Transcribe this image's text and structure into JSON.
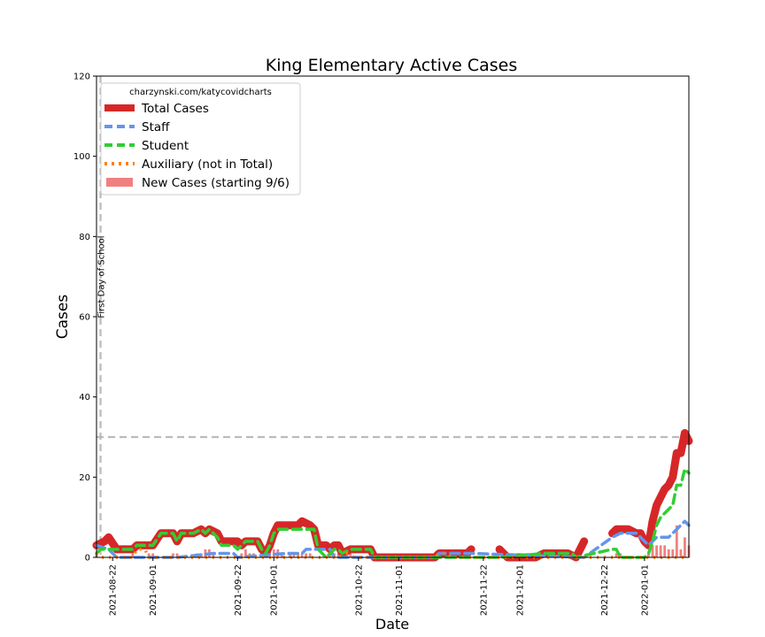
{
  "chart_data": {
    "type": "line",
    "title": "King Elementary Active Cases",
    "xlabel": "Date",
    "ylabel": "Cases",
    "ylim": [
      0,
      120
    ],
    "xlim": [
      "2021-08-18",
      "2022-01-12"
    ],
    "yticks": [
      0,
      20,
      40,
      60,
      80,
      100,
      120
    ],
    "xticks": [
      "2021-08-22",
      "2021-09-01",
      "2021-09-22",
      "2021-10-01",
      "2021-10-22",
      "2021-11-01",
      "2021-11-22",
      "2021-12-01",
      "2021-12-22",
      "2022-01-01"
    ],
    "grid": false,
    "legend_position": "top-left",
    "legend_title": "charzynski.com/katycovidcharts",
    "reference_lines": [
      {
        "orientation": "vertical",
        "x": "2021-08-19",
        "label": "First Day of School"
      },
      {
        "orientation": "horizontal",
        "y": 30,
        "label": ""
      }
    ],
    "series": [
      {
        "name": "Total Cases",
        "color": "#d62728",
        "style": "solid",
        "points": [
          [
            "2021-08-18",
            3
          ],
          [
            "2021-08-20",
            4
          ],
          [
            "2021-08-21",
            5
          ],
          [
            "2021-08-23",
            2
          ],
          [
            "2021-08-27",
            2
          ],
          [
            "2021-08-28",
            3
          ],
          [
            "2021-09-01",
            3
          ],
          [
            "2021-09-03",
            6
          ],
          [
            "2021-09-06",
            6
          ],
          [
            "2021-09-07",
            4
          ],
          [
            "2021-09-08",
            6
          ],
          [
            "2021-09-11",
            6
          ],
          [
            "2021-09-13",
            7
          ],
          [
            "2021-09-14",
            6
          ],
          [
            "2021-09-15",
            7
          ],
          [
            "2021-09-17",
            6
          ],
          [
            "2021-09-18",
            4
          ],
          [
            "2021-09-20",
            4
          ],
          [
            "2021-09-22",
            4
          ],
          [
            "2021-09-23",
            3
          ],
          [
            "2021-09-24",
            4
          ],
          [
            "2021-09-27",
            4
          ],
          [
            "2021-09-28",
            2
          ],
          [
            "2021-09-29",
            1
          ],
          [
            "2021-09-30",
            3
          ],
          [
            "2021-10-01",
            6
          ],
          [
            "2021-10-02",
            8
          ],
          [
            "2021-10-05",
            8
          ],
          [
            "2021-10-06",
            8
          ],
          [
            "2021-10-07",
            8
          ],
          [
            "2021-10-08",
            9
          ],
          [
            "2021-10-10",
            8
          ],
          [
            "2021-10-11",
            7
          ],
          [
            "2021-10-12",
            3
          ],
          [
            "2021-10-14",
            3
          ],
          [
            "2021-10-15",
            2
          ],
          [
            "2021-10-16",
            3
          ],
          [
            "2021-10-17",
            3
          ],
          [
            "2021-10-18",
            1
          ],
          [
            "2021-10-20",
            2
          ],
          [
            "2021-10-25",
            2
          ],
          [
            "2021-10-26",
            0
          ],
          [
            "2021-11-04",
            0
          ],
          [
            "2021-11-08",
            0
          ],
          [
            "2021-11-10",
            0
          ],
          [
            "2021-11-11",
            1
          ],
          [
            "2021-11-18",
            1
          ],
          [
            "2021-11-19",
            2
          ]
        ]
      },
      {
        "name": "Total Cases",
        "color": "#d62728",
        "style": "solid",
        "points": [
          [
            "2021-11-26",
            2
          ],
          [
            "2021-11-28",
            0
          ],
          [
            "2021-12-03",
            0
          ],
          [
            "2021-12-05",
            0
          ],
          [
            "2021-12-07",
            1
          ],
          [
            "2021-12-13",
            1
          ],
          [
            "2021-12-15",
            0
          ],
          [
            "2021-12-17",
            4
          ]
        ]
      },
      {
        "name": "Total Cases",
        "color": "#d62728",
        "style": "solid",
        "points": [
          [
            "2021-12-24",
            6
          ],
          [
            "2021-12-25",
            7
          ],
          [
            "2021-12-28",
            7
          ],
          [
            "2021-12-30",
            6
          ],
          [
            "2021-12-31",
            6
          ],
          [
            "2022-01-01",
            4
          ],
          [
            "2022-01-02",
            3
          ],
          [
            "2022-01-03",
            9
          ],
          [
            "2022-01-04",
            13
          ],
          [
            "2022-01-05",
            15
          ],
          [
            "2022-01-06",
            17
          ],
          [
            "2022-01-07",
            18
          ],
          [
            "2022-01-08",
            20
          ],
          [
            "2022-01-09",
            26
          ],
          [
            "2022-01-10",
            26
          ],
          [
            "2022-01-11",
            31
          ],
          [
            "2022-01-12",
            29
          ]
        ]
      },
      {
        "name": "Staff",
        "color": "#6495ed",
        "style": "dashed",
        "points": [
          [
            "2021-08-18",
            3
          ],
          [
            "2021-08-21",
            2
          ],
          [
            "2021-08-23",
            0
          ],
          [
            "2021-08-24",
            0
          ],
          [
            "2021-09-07",
            0
          ],
          [
            "2021-09-16",
            1
          ],
          [
            "2021-09-21",
            1
          ],
          [
            "2021-09-22",
            0
          ],
          [
            "2021-10-04",
            1
          ],
          [
            "2021-10-08",
            1
          ],
          [
            "2021-10-09",
            2
          ],
          [
            "2021-10-15",
            2
          ],
          [
            "2021-10-16",
            0
          ],
          [
            "2021-10-26",
            0
          ],
          [
            "2021-11-10",
            0
          ],
          [
            "2021-11-11",
            1
          ],
          [
            "2021-11-19",
            1
          ],
          [
            "2021-12-17",
            0
          ],
          [
            "2021-12-24",
            5
          ],
          [
            "2021-12-26",
            6
          ],
          [
            "2021-12-30",
            6
          ],
          [
            "2022-01-02",
            3
          ],
          [
            "2022-01-04",
            5
          ],
          [
            "2022-01-07",
            5
          ],
          [
            "2022-01-10",
            8
          ],
          [
            "2022-01-11",
            9
          ],
          [
            "2022-01-12",
            8
          ]
        ]
      },
      {
        "name": "Student",
        "color": "#32cd32",
        "style": "dashed",
        "points": [
          [
            "2021-08-18",
            1
          ],
          [
            "2021-08-19",
            2
          ],
          [
            "2021-08-23",
            2
          ],
          [
            "2021-08-27",
            2
          ],
          [
            "2021-08-28",
            3
          ],
          [
            "2021-09-01",
            3
          ],
          [
            "2021-09-03",
            6
          ],
          [
            "2021-09-06",
            6
          ],
          [
            "2021-09-07",
            4
          ],
          [
            "2021-09-08",
            6
          ],
          [
            "2021-09-11",
            6
          ],
          [
            "2021-09-13",
            7
          ],
          [
            "2021-09-14",
            6
          ],
          [
            "2021-09-15",
            7
          ],
          [
            "2021-09-17",
            5
          ],
          [
            "2021-09-18",
            3
          ],
          [
            "2021-09-21",
            3
          ],
          [
            "2021-09-22",
            2
          ],
          [
            "2021-09-24",
            4
          ],
          [
            "2021-09-27",
            4
          ],
          [
            "2021-09-28",
            2
          ],
          [
            "2021-09-29",
            1
          ],
          [
            "2021-09-30",
            3
          ],
          [
            "2021-10-01",
            6
          ],
          [
            "2021-10-02",
            7
          ],
          [
            "2021-10-08",
            7
          ],
          [
            "2021-10-11",
            7
          ],
          [
            "2021-10-12",
            2
          ],
          [
            "2021-10-14",
            0
          ],
          [
            "2021-10-15",
            1
          ],
          [
            "2021-10-16",
            2
          ],
          [
            "2021-10-17",
            2
          ],
          [
            "2021-10-18",
            1
          ],
          [
            "2021-10-20",
            2
          ],
          [
            "2021-10-25",
            2
          ],
          [
            "2021-10-26",
            0
          ],
          [
            "2021-11-10",
            0
          ],
          [
            "2021-11-19",
            0
          ],
          [
            "2021-11-26",
            0
          ],
          [
            "2021-12-07",
            1
          ],
          [
            "2021-12-14",
            1
          ],
          [
            "2021-12-15",
            0
          ],
          [
            "2021-12-24",
            2
          ],
          [
            "2021-12-25",
            2
          ],
          [
            "2021-12-26",
            0
          ],
          [
            "2022-01-01",
            0
          ],
          [
            "2022-01-02",
            1
          ],
          [
            "2022-01-03",
            4
          ],
          [
            "2022-01-04",
            8
          ],
          [
            "2022-01-05",
            10
          ],
          [
            "2022-01-06",
            11
          ],
          [
            "2022-01-07",
            12
          ],
          [
            "2022-01-08",
            13
          ],
          [
            "2022-01-09",
            18
          ],
          [
            "2022-01-10",
            18
          ],
          [
            "2022-01-11",
            22
          ],
          [
            "2022-01-12",
            21
          ]
        ]
      },
      {
        "name": "Auxiliary (not in Total)",
        "color": "#ff7f0e",
        "style": "dotted",
        "points": [
          [
            "2021-08-18",
            1
          ],
          [
            "2021-08-19",
            0
          ],
          [
            "2021-08-27",
            0
          ],
          [
            "2021-08-28",
            2
          ],
          [
            "2021-08-30",
            2
          ],
          [
            "2021-08-31",
            0
          ],
          [
            "2021-09-08",
            0
          ],
          [
            "2021-09-29",
            0
          ],
          [
            "2021-10-06",
            0
          ],
          [
            "2021-10-17",
            0
          ],
          [
            "2021-10-19",
            1
          ],
          [
            "2021-10-21",
            0
          ],
          [
            "2021-10-26",
            0
          ],
          [
            "2021-11-10",
            0
          ],
          [
            "2021-11-11",
            1
          ],
          [
            "2021-11-13",
            1
          ],
          [
            "2021-11-14",
            0
          ],
          [
            "2021-11-19",
            0
          ],
          [
            "2021-11-26",
            0
          ],
          [
            "2021-12-17",
            0
          ],
          [
            "2021-12-24",
            0
          ],
          [
            "2022-01-12",
            0
          ]
        ]
      }
    ],
    "new_cases": {
      "name": "New Cases (starting 9/6)",
      "color": "#f08080",
      "points": [
        [
          "2021-08-18",
          1
        ],
        [
          "2021-08-27",
          1
        ],
        [
          "2021-08-31",
          1
        ],
        [
          "2021-09-01",
          1
        ],
        [
          "2021-09-06",
          1
        ],
        [
          "2021-09-07",
          1
        ],
        [
          "2021-09-12",
          1
        ],
        [
          "2021-09-13",
          1
        ],
        [
          "2021-09-14",
          2
        ],
        [
          "2021-09-15",
          2
        ],
        [
          "2021-09-16",
          1
        ],
        [
          "2021-09-23",
          1
        ],
        [
          "2021-09-24",
          2
        ],
        [
          "2021-09-25",
          1
        ],
        [
          "2021-09-26",
          1
        ],
        [
          "2021-09-29",
          1
        ],
        [
          "2021-09-30",
          2
        ],
        [
          "2021-10-01",
          2
        ],
        [
          "2021-10-02",
          2
        ],
        [
          "2021-10-03",
          1
        ],
        [
          "2021-10-05",
          1
        ],
        [
          "2021-10-06",
          1
        ],
        [
          "2021-10-07",
          1
        ],
        [
          "2021-10-08",
          1
        ],
        [
          "2021-10-09",
          1
        ],
        [
          "2021-10-10",
          1
        ],
        [
          "2021-10-15",
          1
        ],
        [
          "2021-10-16",
          1
        ],
        [
          "2021-10-17",
          1
        ],
        [
          "2021-10-18",
          1
        ],
        [
          "2021-10-19",
          1
        ],
        [
          "2021-10-20",
          1
        ],
        [
          "2021-11-11",
          1
        ],
        [
          "2021-11-12",
          1
        ],
        [
          "2021-11-17",
          1
        ],
        [
          "2021-12-25",
          1
        ],
        [
          "2021-12-26",
          1
        ],
        [
          "2022-01-02",
          1
        ],
        [
          "2022-01-03",
          3
        ],
        [
          "2022-01-04",
          3
        ],
        [
          "2022-01-05",
          3
        ],
        [
          "2022-01-06",
          3
        ],
        [
          "2022-01-07",
          2
        ],
        [
          "2022-01-08",
          2
        ],
        [
          "2022-01-09",
          8
        ],
        [
          "2022-01-10",
          2
        ],
        [
          "2022-01-11",
          5
        ],
        [
          "2022-01-12",
          3
        ]
      ]
    }
  }
}
